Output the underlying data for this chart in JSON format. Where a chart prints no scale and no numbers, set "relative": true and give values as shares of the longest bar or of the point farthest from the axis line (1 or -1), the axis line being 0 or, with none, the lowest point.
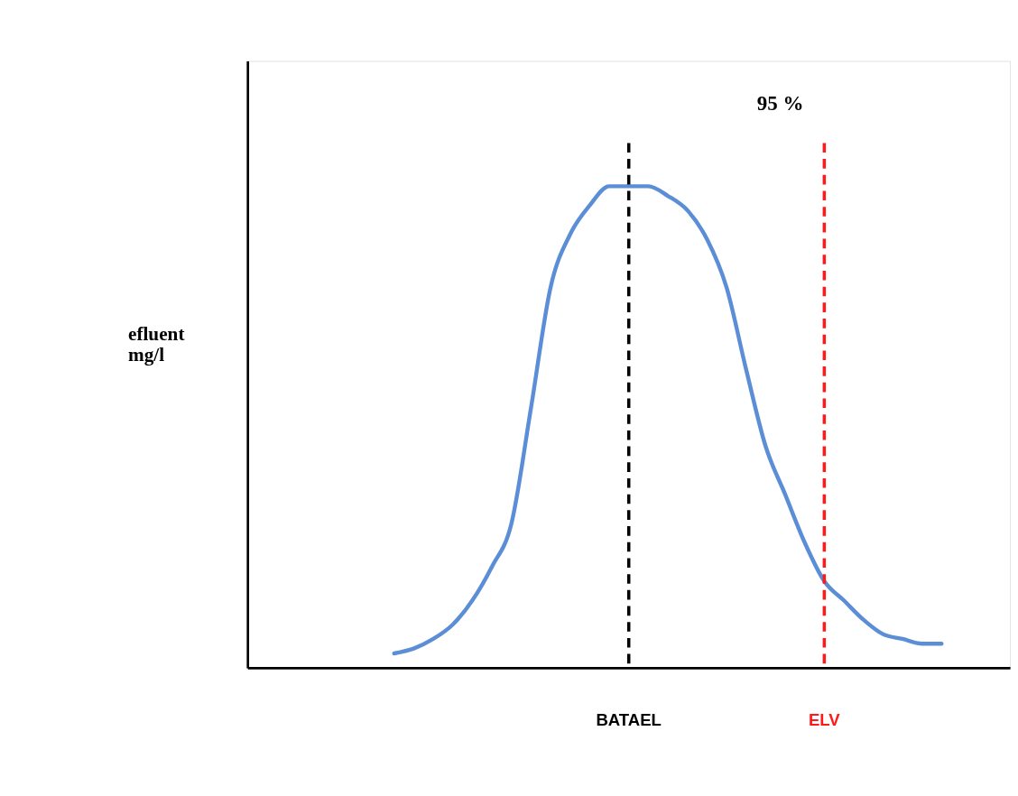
{
  "chart_data": {
    "type": "line",
    "relative": true,
    "ylabel": "efluent\nmg/l",
    "annotations": [
      "95 %"
    ],
    "categories": [
      null,
      null,
      null,
      null,
      null,
      null,
      null,
      null,
      null,
      null,
      null,
      null,
      null,
      null,
      null,
      null,
      null,
      null,
      null,
      "BATAEL",
      null,
      null,
      null,
      null,
      null,
      null,
      null,
      null,
      null,
      "ELV",
      null,
      null,
      null,
      null,
      null,
      null,
      null,
      null,
      null
    ],
    "series": [
      {
        "color": "#5b8ed6",
        "values": [
          null,
          null,
          null,
          null,
          null,
          null,
          null,
          0.03,
          0.04,
          0.06,
          0.09,
          0.14,
          0.21,
          0.3,
          0.54,
          0.79,
          0.9,
          0.96,
          1.0,
          1.0,
          1.0,
          0.98,
          0.95,
          0.89,
          0.79,
          0.62,
          0.46,
          0.36,
          0.26,
          0.18,
          0.14,
          0.1,
          0.07,
          0.06,
          0.05,
          0.05,
          null,
          null,
          null
        ]
      }
    ],
    "ref_lines": [
      {
        "axis": "x",
        "value": "BATAEL",
        "color": "#000000",
        "line_style": "dashed"
      },
      {
        "axis": "x",
        "value": "ELV",
        "color": "#ff1a1a",
        "line_style": "dashed"
      }
    ]
  }
}
